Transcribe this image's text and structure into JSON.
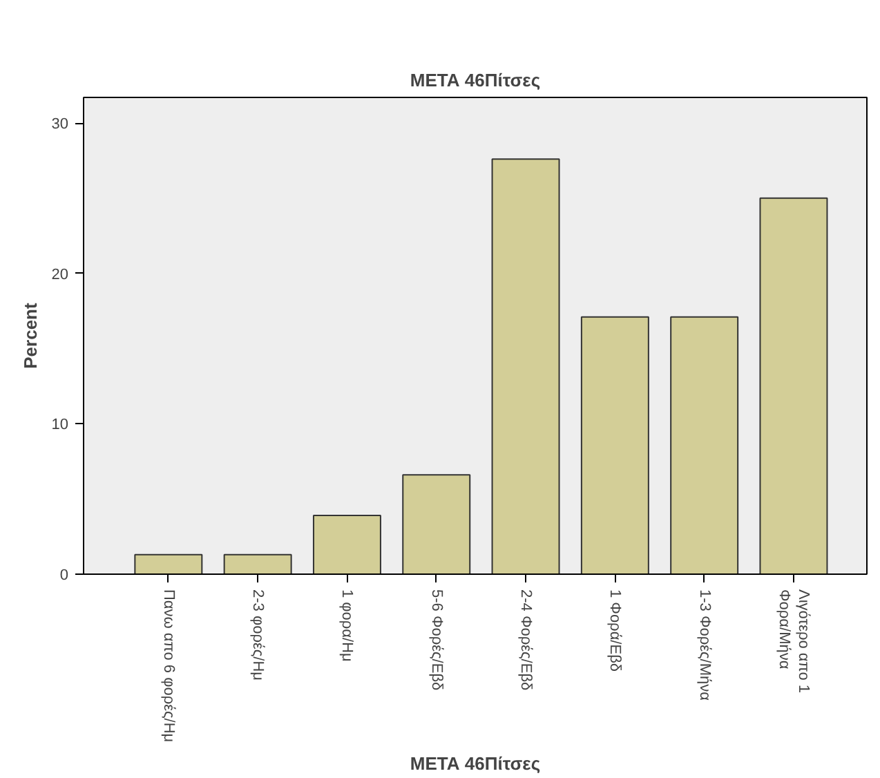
{
  "chart_data": {
    "type": "bar",
    "title": "ΜΕΤΑ 46Πίτσες",
    "xlabel": "ΜΕΤΑ 46Πίτσες",
    "ylabel": "Percent",
    "categories": [
      "Πανω απο 6 φορές/Ημ",
      "2-3 φορές/Ημ",
      "1 φορα/Ημ",
      "5-6 Φορές/Εβδ",
      "2-4 Φορές/Εβδ",
      "1 Φορά/Εβδ",
      "1-3 Φορές/Μήνα",
      "Λιγότερο απο 1 Φορα/Μήνα"
    ],
    "values": [
      1.3,
      1.3,
      3.9,
      6.6,
      27.6,
      17.1,
      17.1,
      25.0
    ],
    "color": "#d3ce97",
    "ylim": [
      0,
      31.7
    ],
    "yticks": [
      0,
      10,
      20,
      30
    ],
    "grid": false
  }
}
